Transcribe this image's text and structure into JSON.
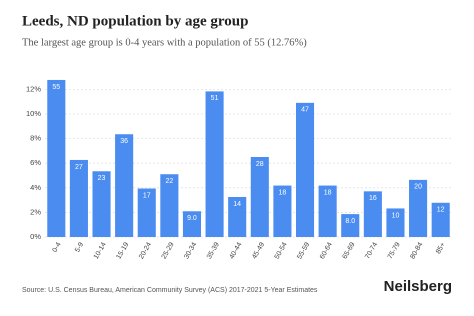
{
  "chart_data": {
    "type": "bar",
    "title": "Leeds, ND population by age group",
    "subtitle": "The largest age group is 0-4 years with a population of 55 (12.76%)",
    "categories": [
      "0-4",
      "5-9",
      "10-14",
      "15-19",
      "20-24",
      "25-29",
      "30-34",
      "35-39",
      "40-44",
      "45-49",
      "50-54",
      "55-59",
      "60-64",
      "65-69",
      "70-74",
      "75-79",
      "80-84",
      "85+"
    ],
    "values": [
      12.76,
      6.26,
      5.34,
      8.35,
      3.94,
      5.1,
      2.09,
      11.83,
      3.25,
      6.5,
      4.18,
      10.9,
      4.18,
      1.86,
      3.71,
      2.32,
      4.64,
      2.78
    ],
    "data_labels": [
      "55",
      "27",
      "23",
      "36",
      "17",
      "22",
      "9.0",
      "51",
      "14",
      "28",
      "18",
      "47",
      "18",
      "8.0",
      "16",
      "10",
      "20",
      "12"
    ],
    "color": "#4a8cf0",
    "ylim": [
      0,
      13
    ],
    "yticks": [
      {
        "value": 0,
        "label": "0%"
      },
      {
        "value": 2,
        "label": "2%"
      },
      {
        "value": 4,
        "label": "4%"
      },
      {
        "value": 6,
        "label": "6%"
      },
      {
        "value": 8,
        "label": "8%"
      },
      {
        "value": 10,
        "label": "10%"
      },
      {
        "value": 12,
        "label": "12%"
      }
    ],
    "grid": true,
    "source": "Source: U.S. Census Bureau, American Community Survey (ACS) 2017-2021 5-Year Estimates",
    "brand": "Neilsberg"
  }
}
